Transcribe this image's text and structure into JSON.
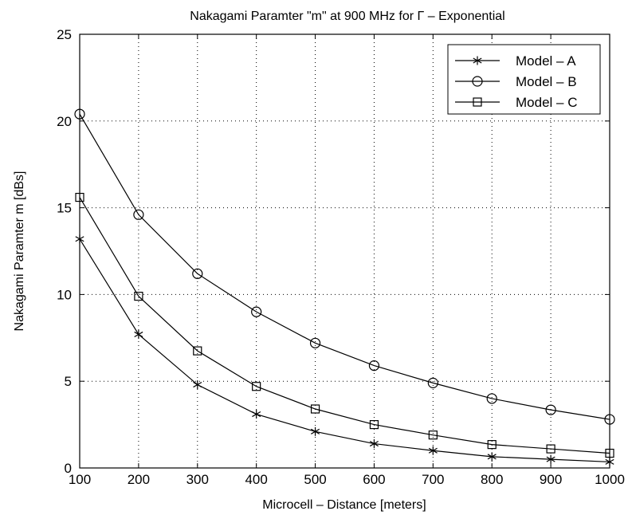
{
  "chart_data": {
    "type": "line",
    "title": "Nakagami Paramter \"m\" at 900 MHz for Γ – Exponential",
    "xlabel": "Microcell – Distance [meters]",
    "ylabel": "Nakagami Paramter m [dBs]",
    "xlim": [
      100,
      1000
    ],
    "ylim": [
      0,
      25
    ],
    "xticks": [
      100,
      200,
      300,
      400,
      500,
      600,
      700,
      800,
      900,
      1000
    ],
    "yticks": [
      0,
      5,
      10,
      15,
      20,
      25
    ],
    "grid": true,
    "legend_position": "top-right",
    "x": [
      100,
      200,
      300,
      400,
      500,
      600,
      700,
      800,
      900,
      1000
    ],
    "series": [
      {
        "name": "Model – A",
        "marker": "asterisk",
        "values": [
          13.2,
          7.7,
          4.8,
          3.1,
          2.1,
          1.4,
          1.0,
          0.65,
          0.5,
          0.35
        ]
      },
      {
        "name": "Model – B",
        "marker": "circle",
        "values": [
          20.4,
          14.6,
          11.2,
          9.0,
          7.2,
          5.9,
          4.9,
          4.0,
          3.35,
          2.8
        ]
      },
      {
        "name": "Model – C",
        "marker": "square",
        "values": [
          15.6,
          9.9,
          6.75,
          4.7,
          3.4,
          2.5,
          1.9,
          1.35,
          1.1,
          0.85
        ]
      }
    ]
  }
}
